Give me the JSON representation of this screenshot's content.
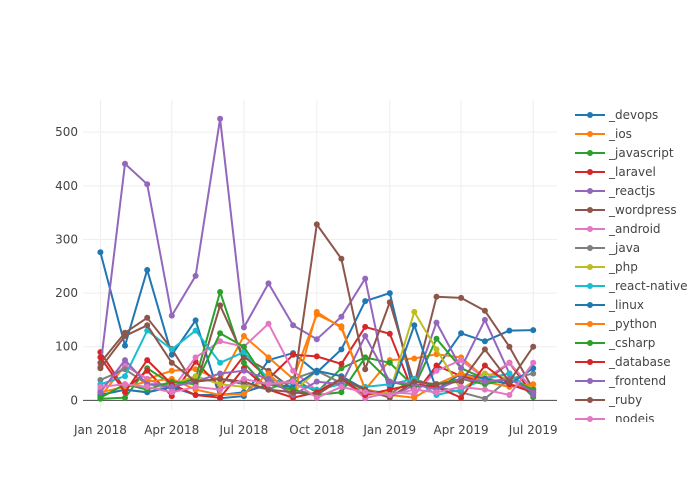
{
  "chart_data": {
    "type": "line",
    "title": "",
    "xlabel": "",
    "ylabel": "",
    "x": [
      "2018-01",
      "2018-02",
      "2018-03",
      "2018-04",
      "2018-05",
      "2018-06",
      "2018-07",
      "2018-08",
      "2018-09",
      "2018-10",
      "2018-11",
      "2018-12",
      "2019-01",
      "2019-02",
      "2019-03",
      "2019-04",
      "2019-05",
      "2019-06",
      "2019-07"
    ],
    "xlim": [
      "2017-12-10",
      "2019-07-31"
    ],
    "ylim": [
      -18,
      560
    ],
    "x_ticks": [
      {
        "date": "2018-01",
        "label": "Jan 2018"
      },
      {
        "date": "2018-04",
        "label": "Apr 2018"
      },
      {
        "date": "2018-07",
        "label": "Jul 2018"
      },
      {
        "date": "2018-10",
        "label": "Oct 2018"
      },
      {
        "date": "2019-01",
        "label": "Jan 2019"
      },
      {
        "date": "2019-04",
        "label": "Apr 2019"
      },
      {
        "date": "2019-07",
        "label": "Jul 2019"
      }
    ],
    "y_ticks": [
      {
        "value": 0,
        "label": "0"
      },
      {
        "value": 100,
        "label": "100"
      },
      {
        "value": 200,
        "label": "200"
      },
      {
        "value": 300,
        "label": "300"
      },
      {
        "value": 400,
        "label": "400"
      },
      {
        "value": 500,
        "label": "500"
      }
    ],
    "grid": true,
    "legend_position": "right",
    "series": [
      {
        "name": "_devops",
        "color": "#1f77b4",
        "values": [
          276,
          102,
          243,
          85,
          149,
          4,
          8,
          75,
          88,
          52,
          95,
          185,
          200,
          10,
          60,
          125,
          110,
          130,
          131
        ]
      },
      {
        "name": "_ios",
        "color": "#ff7f0e",
        "values": [
          7,
          65,
          40,
          55,
          58,
          38,
          120,
          80,
          40,
          160,
          138,
          20,
          75,
          78,
          86,
          80,
          42,
          30,
          22
        ]
      },
      {
        "name": "_javascript",
        "color": "#2ca02c",
        "values": [
          3,
          5,
          60,
          30,
          40,
          202,
          70,
          20,
          40,
          15,
          60,
          80,
          70,
          25,
          115,
          60,
          40,
          50,
          6
        ]
      },
      {
        "name": "_laravel",
        "color": "#d62728",
        "values": [
          90,
          20,
          55,
          8,
          72,
          25,
          83,
          40,
          85,
          82,
          68,
          137,
          124,
          10,
          65,
          45,
          35,
          70,
          10
        ]
      },
      {
        "name": "_reactjs",
        "color": "#9467bd",
        "values": [
          62,
          441,
          403,
          158,
          232,
          525,
          136,
          218,
          140,
          114,
          156,
          227,
          7,
          28,
          145,
          60,
          150,
          50,
          10
        ]
      },
      {
        "name": "_wordpress",
        "color": "#8c564b",
        "values": [
          70,
          126,
          154,
          96,
          25,
          177,
          80,
          55,
          20,
          328,
          264,
          58,
          183,
          30,
          193,
          191,
          167,
          100,
          20
        ]
      },
      {
        "name": "_android",
        "color": "#e377c2",
        "values": [
          20,
          65,
          40,
          20,
          80,
          110,
          100,
          143,
          55,
          18,
          40,
          4,
          15,
          12,
          55,
          75,
          40,
          70,
          20
        ]
      },
      {
        "name": "_java",
        "color": "#7f7f7f",
        "values": [
          38,
          58,
          30,
          30,
          35,
          40,
          30,
          20,
          40,
          55,
          32,
          20,
          12,
          40,
          25,
          15,
          3,
          40,
          50
        ]
      },
      {
        "name": "_php",
        "color": "#bcbd22",
        "values": [
          10,
          20,
          15,
          30,
          45,
          30,
          25,
          35,
          15,
          55,
          45,
          10,
          15,
          165,
          95,
          20,
          50,
          40,
          22
        ]
      },
      {
        "name": "_react-native",
        "color": "#17becf",
        "values": [
          30,
          45,
          130,
          95,
          130,
          70,
          90,
          40,
          30,
          20,
          30,
          25,
          30,
          40,
          10,
          20,
          40,
          50,
          15
        ]
      },
      {
        "name": "_linux",
        "color": "#1f77b4",
        "values": [
          10,
          20,
          15,
          25,
          10,
          10,
          15,
          30,
          25,
          55,
          45,
          20,
          10,
          140,
          20,
          50,
          40,
          30,
          60
        ]
      },
      {
        "name": "_python",
        "color": "#ff7f0e",
        "values": [
          15,
          25,
          35,
          40,
          20,
          10,
          12,
          50,
          5,
          165,
          135,
          20,
          10,
          5,
          30,
          50,
          35,
          25,
          30
        ]
      },
      {
        "name": "_csharp",
        "color": "#2ca02c",
        "values": [
          5,
          30,
          20,
          35,
          30,
          125,
          100,
          30,
          20,
          10,
          15,
          80,
          35,
          25,
          30,
          40,
          30,
          40,
          20
        ]
      },
      {
        "name": "_database",
        "color": "#d62728",
        "values": [
          80,
          15,
          75,
          30,
          10,
          5,
          60,
          20,
          5,
          15,
          40,
          10,
          20,
          30,
          25,
          5,
          65,
          30,
          15
        ]
      },
      {
        "name": "_frontend",
        "color": "#9467bd",
        "values": [
          15,
          75,
          30,
          25,
          35,
          50,
          55,
          40,
          10,
          35,
          30,
          120,
          35,
          30,
          20,
          40,
          35,
          40,
          15
        ]
      },
      {
        "name": "_ruby",
        "color": "#8c564b",
        "values": [
          60,
          120,
          140,
          70,
          35,
          40,
          35,
          20,
          15,
          10,
          40,
          20,
          5,
          35,
          30,
          35,
          95,
          35,
          100
        ]
      },
      {
        "name": "_nodejs",
        "color": "#e377c2",
        "values": [
          25,
          30,
          25,
          15,
          25,
          20,
          40,
          30,
          35,
          5,
          25,
          15,
          10,
          20,
          15,
          25,
          20,
          10,
          70
        ]
      }
    ]
  }
}
